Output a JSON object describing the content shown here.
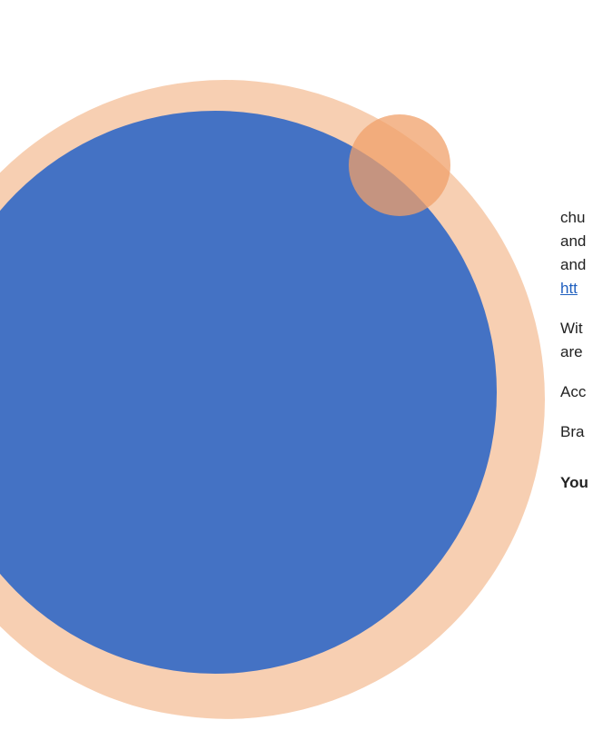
{
  "paragraphs": [
    {
      "lines": [
        "chu",
        "and",
        "and"
      ],
      "link": "htt"
    },
    {
      "lines": [
        "Wit",
        "are"
      ]
    },
    {
      "lines": [
        "Acc"
      ]
    },
    {
      "lines": [
        "Bra"
      ]
    },
    {
      "lines": [
        "You"
      ]
    }
  ]
}
